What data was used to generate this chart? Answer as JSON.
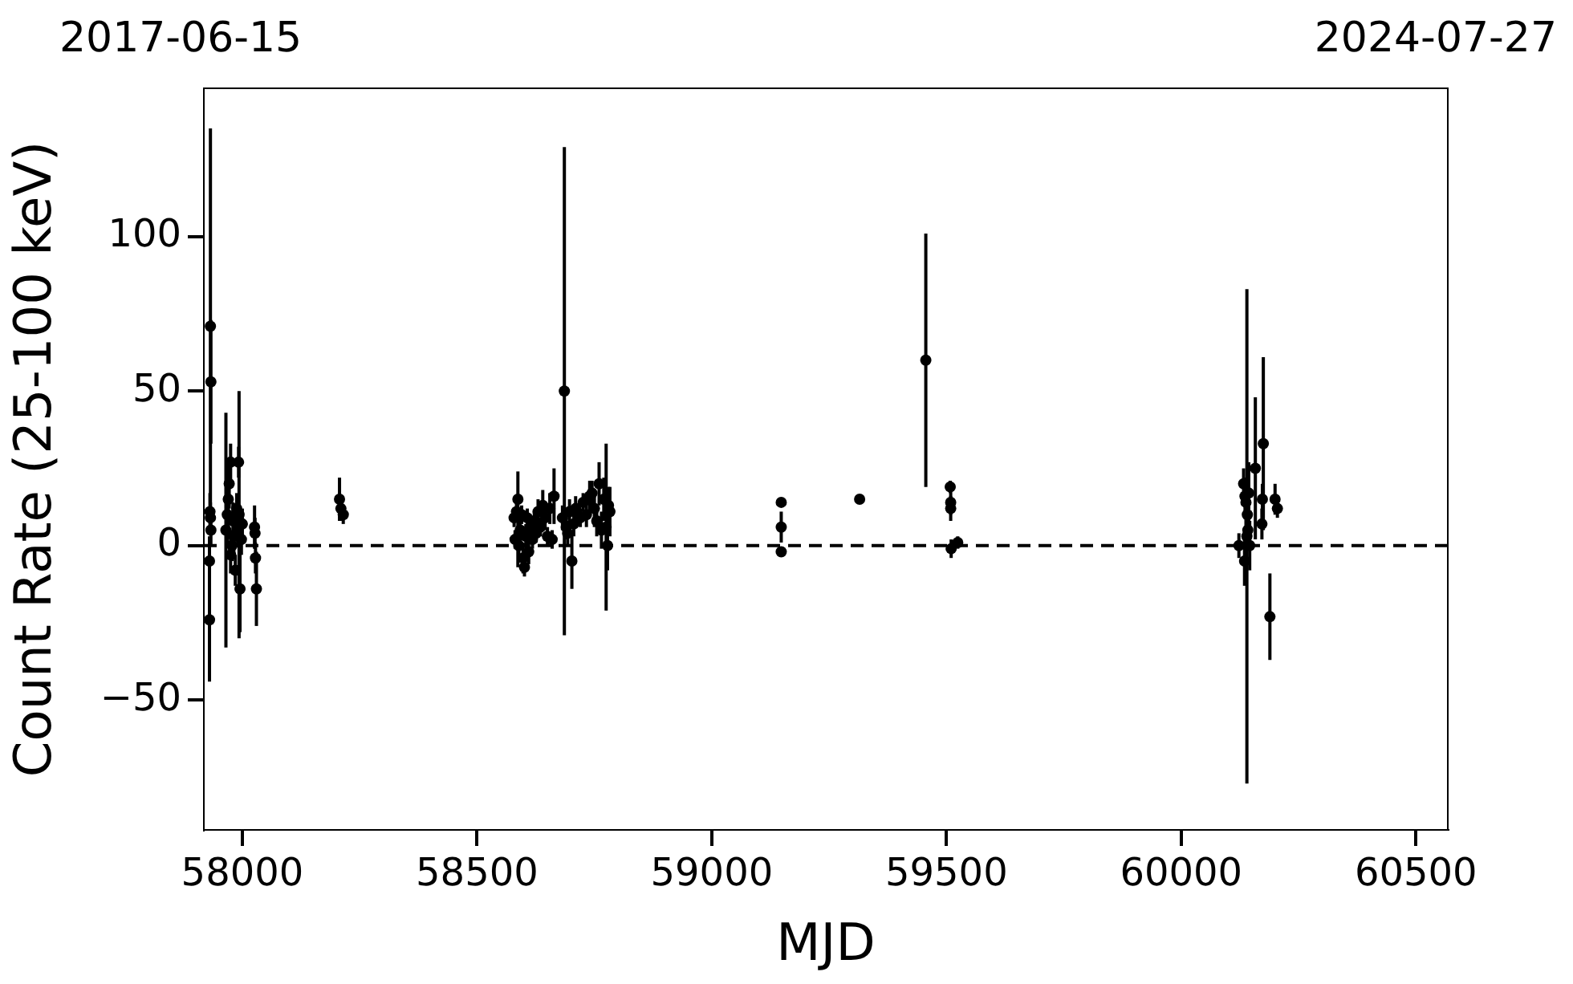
{
  "chart_data": {
    "type": "scatter",
    "xlabel": "MJD",
    "ylabel": "Count Rate (25-100 keV)",
    "annotations": [
      "2017-06-15",
      "2024-07-27"
    ],
    "x": [
      57930,
      57930,
      57931,
      57932,
      57932,
      57933,
      57933,
      57965,
      57968,
      57970,
      57972,
      57975,
      57975,
      57978,
      57980,
      57982,
      57985,
      57988,
      57990,
      57992,
      57993,
      57995,
      57998,
      58000,
      58026,
      58027,
      58028,
      58030,
      58207,
      58210,
      58215,
      58579,
      58581,
      58584,
      58587,
      58589,
      58592,
      58595,
      58598,
      58601,
      58604,
      58607,
      58610,
      58614,
      58618,
      58622,
      58626,
      58630,
      58635,
      58640,
      58645,
      58650,
      58655,
      58660,
      58664,
      58682,
      58686,
      58690,
      58693,
      58697,
      58702,
      58706,
      58710,
      58720,
      58726,
      58733,
      58740,
      58745,
      58750,
      58755,
      58760,
      58765,
      58770,
      58775,
      58778,
      58780,
      58783,
      59148,
      59148,
      59148,
      59315,
      59456,
      59508,
      59509,
      59509,
      59510,
      59524,
      60123,
      60133,
      60135,
      60136,
      60138,
      60140,
      60141,
      60142,
      60144,
      60146,
      60158,
      60172,
      60173,
      60175,
      60189,
      60200,
      60205
    ],
    "values": [
      -24,
      -5,
      11,
      71,
      9,
      53,
      5,
      5,
      10,
      15,
      20,
      27,
      -3,
      0,
      8,
      3,
      -8,
      12,
      5,
      27,
      10,
      -14,
      2,
      7,
      6,
      4,
      -4,
      -14,
      15,
      12,
      10,
      9,
      2,
      11,
      15,
      0,
      5,
      10,
      -4,
      -7,
      3,
      9,
      -2,
      6,
      2,
      8,
      4,
      11,
      6,
      13,
      9,
      3,
      12,
      2,
      16,
      9,
      50,
      6,
      4,
      11,
      -5,
      7,
      12,
      9,
      14,
      10,
      16,
      17,
      12,
      8,
      20,
      5,
      15,
      6,
      0,
      13,
      11,
      -2,
      6,
      14,
      15,
      60,
      19,
      14,
      12,
      -1,
      1,
      0,
      20,
      -5,
      16,
      14,
      3,
      10,
      5,
      17,
      0,
      25,
      7,
      15,
      33,
      -23,
      15,
      12
    ],
    "errors": [
      20,
      8,
      6,
      64,
      5,
      20,
      5,
      38,
      10,
      12,
      8,
      6,
      6,
      5,
      6,
      6,
      5,
      5,
      5,
      5,
      40,
      14,
      5,
      5,
      7,
      5,
      5,
      12,
      7,
      4,
      3,
      3,
      3,
      3,
      [
        -7,
        24
      ],
      5,
      4,
      3,
      5,
      3,
      4,
      3,
      4,
      3,
      3,
      3,
      3,
      4,
      3,
      5,
      4,
      3,
      5,
      3,
      9,
      4,
      79,
      4,
      4,
      4,
      9,
      4,
      4,
      3,
      3,
      4,
      5,
      4,
      6,
      5,
      7,
      6,
      7,
      27,
      8,
      6,
      8,
      1,
      5,
      1,
      1,
      41,
      2,
      4,
      4,
      3,
      2,
      4,
      5,
      8,
      6,
      8,
      80,
      6,
      6,
      10,
      8,
      23,
      5,
      5,
      28,
      14,
      5,
      3
    ],
    "color": "#000000",
    "marker": "circle",
    "xlim": [
      57918,
      60568
    ],
    "xticks": [
      58000,
      58500,
      59000,
      59500,
      60000,
      60500
    ],
    "ylim": [
      -92,
      148
    ],
    "yticks": [
      {
        "value": -50,
        "label": "−50"
      },
      0,
      50,
      100
    ],
    "ref_lines": [
      {
        "axis": "y",
        "value": 0,
        "color": "#000000",
        "line_style": "dashed"
      }
    ],
    "grid": false,
    "legend": false
  }
}
